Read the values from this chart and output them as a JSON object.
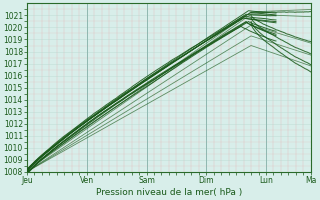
{
  "xlabel": "Pression niveau de la mer( hPa )",
  "ylim": [
    1008,
    1022
  ],
  "yticks": [
    1008,
    1009,
    1010,
    1011,
    1012,
    1013,
    1014,
    1015,
    1016,
    1017,
    1018,
    1019,
    1020,
    1021
  ],
  "day_labels": [
    "Jeu",
    "Ven",
    "Sam",
    "Dim",
    "Lun",
    "Ma"
  ],
  "day_positions": [
    0,
    24,
    48,
    72,
    96,
    114
  ],
  "bg_color": "#d8eeea",
  "minor_grid_color": "#e8b0b0",
  "major_grid_color": "#b8d8d0",
  "line_color": "#1a5a1a",
  "total_hours": 114,
  "xlabel_fontsize": 6.5,
  "tick_fontsize": 5.5,
  "xlabel_color": "#1a5a1a",
  "tick_color": "#1a5a1a"
}
